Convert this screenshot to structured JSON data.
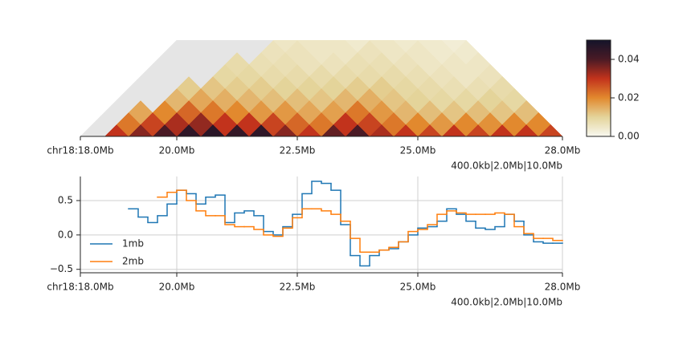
{
  "chart_data": [
    {
      "type": "heatmap",
      "xlim": [
        18,
        28
      ],
      "xticks": [
        {
          "value": 18,
          "label": "chr18:18.0Mb"
        },
        {
          "value": 20,
          "label": "20.0Mb"
        },
        {
          "value": 22.5,
          "label": "22.5Mb"
        },
        {
          "value": 25,
          "label": "25.0Mb"
        },
        {
          "value": 28,
          "label": "28.0Mb"
        }
      ],
      "annotation": "400.0kb|2.0Mb|10.0Mb",
      "missing_color": "#e5e5e5",
      "diagonals": [
        [
          null,
          0.03,
          0.035,
          0.04,
          0.045,
          0.046,
          0.044,
          0.045,
          0.035,
          0.03,
          0.038,
          0.04,
          0.032,
          0.03,
          0.028,
          0.03,
          0.028,
          0.03,
          0.03,
          0.028
        ],
        [
          null,
          0.022,
          0.028,
          0.032,
          0.034,
          0.03,
          0.03,
          0.028,
          0.024,
          0.022,
          0.03,
          0.028,
          0.022,
          0.02,
          0.018,
          0.02,
          0.019,
          0.02,
          0.02
        ],
        [
          null,
          0.016,
          0.02,
          0.024,
          0.022,
          0.02,
          0.018,
          0.018,
          0.016,
          0.017,
          0.022,
          0.018,
          0.014,
          0.013,
          0.012,
          0.013,
          0.012,
          0.013
        ],
        [
          null,
          null,
          0.014,
          0.016,
          0.015,
          0.014,
          0.013,
          0.013,
          0.012,
          0.014,
          0.015,
          0.012,
          0.01,
          0.009,
          0.009,
          0.01,
          0.009
        ],
        [
          null,
          null,
          0.011,
          0.012,
          0.011,
          0.011,
          0.01,
          0.01,
          0.01,
          0.011,
          0.011,
          0.009,
          0.008,
          0.007,
          0.007,
          0.008
        ],
        [
          null,
          null,
          null,
          0.009,
          0.009,
          0.008,
          0.008,
          0.008,
          0.008,
          0.008,
          0.008,
          0.007,
          0.006,
          0.005,
          0.006
        ],
        [
          null,
          null,
          null,
          0.008,
          0.007,
          0.007,
          0.006,
          0.006,
          0.007,
          0.007,
          0.006,
          0.005,
          0.005,
          0.005
        ],
        [
          null,
          null,
          null,
          null,
          0.006,
          0.006,
          0.005,
          0.005,
          0.006,
          0.005,
          0.005,
          0.004,
          0.004
        ],
        [
          null,
          null,
          null,
          null,
          0.005,
          0.005,
          0.005,
          0.004,
          0.005,
          0.004,
          0.004,
          0.003
        ]
      ],
      "colorbar": {
        "lim": [
          0,
          0.05
        ],
        "ticks": [
          {
            "value": 0,
            "label": "0.00"
          },
          0.02,
          0.04
        ],
        "colors": [
          "#f8f8f0",
          "#e4d49a",
          "#e2892e",
          "#c2331c",
          "#4a1a25",
          "#14142a"
        ]
      }
    },
    {
      "type": "line",
      "step": true,
      "xlim": [
        18,
        28
      ],
      "xticks": [
        {
          "value": 18,
          "label": "chr18:18.0Mb"
        },
        {
          "value": 20,
          "label": "20.0Mb"
        },
        {
          "value": 22.5,
          "label": "22.5Mb"
        },
        {
          "value": 25,
          "label": "25.0Mb"
        },
        {
          "value": 28,
          "label": "28.0Mb"
        }
      ],
      "ylim": [
        -0.55,
        0.85
      ],
      "yticks": [
        {
          "value": -0.5,
          "label": "−0.5"
        },
        {
          "value": 0,
          "label": "0.0"
        },
        0.5
      ],
      "grid": true,
      "legend": "lower left",
      "annotation": "400.0kb|2.0Mb|10.0Mb",
      "x": [
        19.0,
        19.2,
        19.4,
        19.6,
        19.8,
        20.0,
        20.2,
        20.4,
        20.6,
        20.8,
        21.0,
        21.2,
        21.4,
        21.6,
        21.8,
        22.0,
        22.2,
        22.4,
        22.6,
        22.8,
        23.0,
        23.2,
        23.4,
        23.6,
        23.8,
        24.0,
        24.2,
        24.4,
        24.6,
        24.8,
        25.0,
        25.2,
        25.4,
        25.6,
        25.8,
        26.0,
        26.2,
        26.4,
        26.6,
        26.8,
        27.0,
        27.2,
        27.4,
        27.6,
        27.8
      ],
      "series": [
        {
          "name": "1mb",
          "color": "#1f77b4",
          "values": [
            0.38,
            0.26,
            0.18,
            0.28,
            0.45,
            0.65,
            0.6,
            0.45,
            0.55,
            0.58,
            0.18,
            0.32,
            0.35,
            0.28,
            0.05,
            0.0,
            0.12,
            0.3,
            0.6,
            0.78,
            0.75,
            0.65,
            0.15,
            -0.3,
            -0.45,
            -0.3,
            -0.22,
            -0.2,
            -0.1,
            0.0,
            0.1,
            0.12,
            0.2,
            0.38,
            0.3,
            0.2,
            0.1,
            0.08,
            0.12,
            0.3,
            0.2,
            0.0,
            -0.1,
            -0.12,
            -0.12
          ]
        },
        {
          "name": "2mb",
          "color": "#ff7f0e",
          "values": [
            null,
            null,
            null,
            0.55,
            0.62,
            0.65,
            0.5,
            0.35,
            0.28,
            0.28,
            0.15,
            0.12,
            0.12,
            0.08,
            0.0,
            -0.02,
            0.1,
            0.25,
            0.38,
            0.38,
            0.35,
            0.3,
            0.2,
            -0.05,
            -0.25,
            -0.25,
            -0.22,
            -0.18,
            -0.1,
            0.05,
            0.08,
            0.15,
            0.3,
            0.35,
            0.32,
            0.3,
            0.3,
            0.3,
            0.32,
            0.3,
            0.12,
            0.02,
            -0.05,
            -0.05,
            -0.08
          ]
        }
      ]
    }
  ]
}
